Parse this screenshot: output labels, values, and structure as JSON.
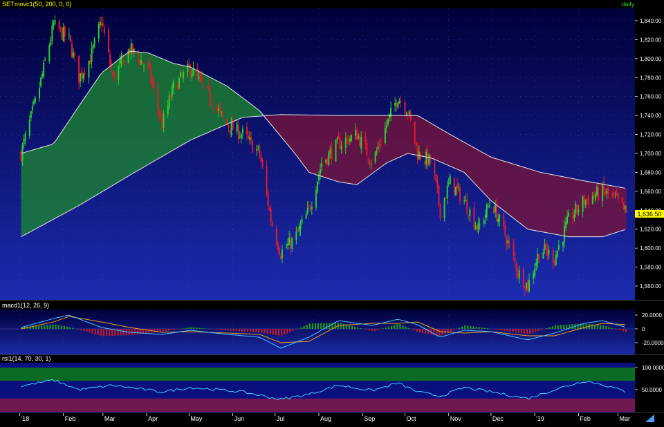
{
  "colors": {
    "bg_top": "#00003a",
    "bg_bottom": "#1c2bb0",
    "up": "#2bd12b",
    "down": "#e8182a",
    "fast_ma_fill": "#1e8a2e",
    "slow_ma_fill": "#7a1438",
    "ma_line": "#e6e6e6",
    "macd_line": "#4fc3ff",
    "signal_line": "#f0a020",
    "hist_pos": "#1e9a1e",
    "hist_neg": "#c0182a",
    "rsi_line": "#44ccff",
    "rsi_over": "#0b6b24",
    "rsi_under": "#701850",
    "label_text": "#ffff00",
    "scale_text": "#ffffff",
    "last_price_bg": "#ffff00"
  },
  "main_panel": {
    "symbol": "SET",
    "indicator": "movc1(50, 200, 0, 0)",
    "timeframe": "daily",
    "price_ticks": [
      "1,840.00",
      "1,820.00",
      "1,800.00",
      "1,780.00",
      "1,760.00",
      "1,740.00",
      "1,720.00",
      "1,700.00",
      "1,680.00",
      "1,660.00",
      "1,640.00",
      "1,620.00",
      "1,600.00",
      "1,580.00",
      "1,560.00"
    ],
    "last_price": "1,636.50"
  },
  "macd_panel": {
    "label": "macd1(12, 26, 9)",
    "ticks": [
      "20.0000",
      "0",
      "-20.0000"
    ]
  },
  "rsi_panel": {
    "label": "rsi1(14, 70, 30, 1)",
    "ticks": [
      "100.0000",
      "50.0000"
    ]
  },
  "time_axis": {
    "labels": [
      "'18",
      "Feb",
      "Mar",
      "Apr",
      "May",
      "Jun",
      "Jul",
      "Aug",
      "Sep",
      "Oct",
      "Nov",
      "Dec",
      "'19",
      "Feb",
      "Mar"
    ]
  },
  "chart_data": {
    "type": "candlestick",
    "title": "SET daily",
    "y_range": [
      1550,
      1855
    ],
    "price_path": [
      {
        "date": "2018-01-02",
        "close": 1700
      },
      {
        "date": "2018-01-15",
        "close": 1770
      },
      {
        "date": "2018-01-25",
        "close": 1835
      },
      {
        "date": "2018-02-05",
        "close": 1820
      },
      {
        "date": "2018-02-12",
        "close": 1780
      },
      {
        "date": "2018-02-20",
        "close": 1800
      },
      {
        "date": "2018-02-28",
        "close": 1840
      },
      {
        "date": "2018-03-08",
        "close": 1780
      },
      {
        "date": "2018-03-20",
        "close": 1810
      },
      {
        "date": "2018-04-02",
        "close": 1790
      },
      {
        "date": "2018-04-12",
        "close": 1730
      },
      {
        "date": "2018-04-20",
        "close": 1770
      },
      {
        "date": "2018-05-02",
        "close": 1790
      },
      {
        "date": "2018-05-15",
        "close": 1760
      },
      {
        "date": "2018-05-28",
        "close": 1730
      },
      {
        "date": "2018-06-08",
        "close": 1720
      },
      {
        "date": "2018-06-20",
        "close": 1700
      },
      {
        "date": "2018-06-28",
        "close": 1630
      },
      {
        "date": "2018-07-05",
        "close": 1595
      },
      {
        "date": "2018-07-15",
        "close": 1610
      },
      {
        "date": "2018-07-25",
        "close": 1640
      },
      {
        "date": "2018-08-03",
        "close": 1690
      },
      {
        "date": "2018-08-15",
        "close": 1710
      },
      {
        "date": "2018-08-28",
        "close": 1720
      },
      {
        "date": "2018-09-08",
        "close": 1690
      },
      {
        "date": "2018-09-18",
        "close": 1730
      },
      {
        "date": "2018-09-26",
        "close": 1760
      },
      {
        "date": "2018-10-03",
        "close": 1745
      },
      {
        "date": "2018-10-10",
        "close": 1700
      },
      {
        "date": "2018-10-20",
        "close": 1690
      },
      {
        "date": "2018-10-26",
        "close": 1640
      },
      {
        "date": "2018-11-02",
        "close": 1670
      },
      {
        "date": "2018-11-12",
        "close": 1650
      },
      {
        "date": "2018-11-22",
        "close": 1620
      },
      {
        "date": "2018-12-01",
        "close": 1650
      },
      {
        "date": "2018-12-12",
        "close": 1610
      },
      {
        "date": "2018-12-20",
        "close": 1575
      },
      {
        "date": "2018-12-27",
        "close": 1560
      },
      {
        "date": "2019-01-05",
        "close": 1600
      },
      {
        "date": "2019-01-15",
        "close": 1590
      },
      {
        "date": "2019-01-25",
        "close": 1630
      },
      {
        "date": "2019-02-05",
        "close": 1650
      },
      {
        "date": "2019-02-18",
        "close": 1660
      },
      {
        "date": "2019-02-28",
        "close": 1650
      },
      {
        "date": "2019-03-07",
        "close": 1636.5
      }
    ],
    "ma_fast_path": [
      {
        "date": "2018-01-02",
        "value": 1700
      },
      {
        "date": "2018-01-25",
        "value": 1710
      },
      {
        "date": "2018-02-12",
        "value": 1750
      },
      {
        "date": "2018-02-28",
        "value": 1785
      },
      {
        "date": "2018-03-20",
        "value": 1808
      },
      {
        "date": "2018-04-02",
        "value": 1806
      },
      {
        "date": "2018-04-20",
        "value": 1795
      },
      {
        "date": "2018-05-02",
        "value": 1791
      },
      {
        "date": "2018-05-28",
        "value": 1771
      },
      {
        "date": "2018-06-20",
        "value": 1745
      },
      {
        "date": "2018-07-15",
        "value": 1700
      },
      {
        "date": "2018-07-25",
        "value": 1680
      },
      {
        "date": "2018-08-15",
        "value": 1670
      },
      {
        "date": "2018-08-28",
        "value": 1667
      },
      {
        "date": "2018-09-18",
        "value": 1690
      },
      {
        "date": "2018-10-03",
        "value": 1700
      },
      {
        "date": "2018-10-20",
        "value": 1695
      },
      {
        "date": "2018-11-12",
        "value": 1680
      },
      {
        "date": "2018-12-01",
        "value": 1650
      },
      {
        "date": "2018-12-27",
        "value": 1620
      },
      {
        "date": "2019-01-25",
        "value": 1612
      },
      {
        "date": "2019-02-18",
        "value": 1612
      },
      {
        "date": "2019-03-07",
        "value": 1620
      }
    ],
    "ma_slow_path": [
      {
        "date": "2018-01-02",
        "value": 1612
      },
      {
        "date": "2018-02-12",
        "value": 1645
      },
      {
        "date": "2018-03-20",
        "value": 1677
      },
      {
        "date": "2018-05-02",
        "value": 1714
      },
      {
        "date": "2018-06-08",
        "value": 1738
      },
      {
        "date": "2018-07-05",
        "value": 1741
      },
      {
        "date": "2018-08-15",
        "value": 1740
      },
      {
        "date": "2018-09-18",
        "value": 1740
      },
      {
        "date": "2018-10-10",
        "value": 1740
      },
      {
        "date": "2018-11-02",
        "value": 1720
      },
      {
        "date": "2018-12-01",
        "value": 1696
      },
      {
        "date": "2019-01-05",
        "value": 1680
      },
      {
        "date": "2019-02-05",
        "value": 1671
      },
      {
        "date": "2019-03-07",
        "value": 1663
      }
    ],
    "macd_path": [
      {
        "date": "2018-01-02",
        "macd": 2,
        "signal": 0
      },
      {
        "date": "2018-01-25",
        "macd": 15,
        "signal": 10
      },
      {
        "date": "2018-02-05",
        "macd": 20,
        "signal": 18
      },
      {
        "date": "2018-02-28",
        "macd": 2,
        "signal": 10
      },
      {
        "date": "2018-03-20",
        "macd": -5,
        "signal": 2
      },
      {
        "date": "2018-04-12",
        "macd": -8,
        "signal": -5
      },
      {
        "date": "2018-05-02",
        "macd": -2,
        "signal": -4
      },
      {
        "date": "2018-05-28",
        "macd": -8,
        "signal": -6
      },
      {
        "date": "2018-06-20",
        "macd": -12,
        "signal": -8
      },
      {
        "date": "2018-07-05",
        "macd": -28,
        "signal": -20
      },
      {
        "date": "2018-07-25",
        "macd": -12,
        "signal": -18
      },
      {
        "date": "2018-08-15",
        "macd": 12,
        "signal": 5
      },
      {
        "date": "2018-09-08",
        "macd": 5,
        "signal": 8
      },
      {
        "date": "2018-09-26",
        "macd": 14,
        "signal": 8
      },
      {
        "date": "2018-10-10",
        "macd": 6,
        "signal": 10
      },
      {
        "date": "2018-10-26",
        "macd": -12,
        "signal": -4
      },
      {
        "date": "2018-11-12",
        "macd": -2,
        "signal": -6
      },
      {
        "date": "2018-12-01",
        "macd": -4,
        "signal": -4
      },
      {
        "date": "2018-12-27",
        "macd": -16,
        "signal": -10
      },
      {
        "date": "2019-01-15",
        "macd": -6,
        "signal": -10
      },
      {
        "date": "2019-02-05",
        "macd": 8,
        "signal": 2
      },
      {
        "date": "2019-02-18",
        "macd": 12,
        "signal": 8
      },
      {
        "date": "2019-03-07",
        "macd": 2,
        "signal": 6
      }
    ],
    "rsi_path": [
      {
        "date": "2018-01-02",
        "value": 58
      },
      {
        "date": "2018-01-25",
        "value": 72
      },
      {
        "date": "2018-02-12",
        "value": 50
      },
      {
        "date": "2018-03-08",
        "value": 60
      },
      {
        "date": "2018-04-12",
        "value": 45
      },
      {
        "date": "2018-05-02",
        "value": 55
      },
      {
        "date": "2018-06-08",
        "value": 45
      },
      {
        "date": "2018-07-05",
        "value": 28
      },
      {
        "date": "2018-07-25",
        "value": 40
      },
      {
        "date": "2018-08-15",
        "value": 60
      },
      {
        "date": "2018-09-08",
        "value": 48
      },
      {
        "date": "2018-09-26",
        "value": 65
      },
      {
        "date": "2018-10-10",
        "value": 45
      },
      {
        "date": "2018-10-26",
        "value": 35
      },
      {
        "date": "2018-11-12",
        "value": 55
      },
      {
        "date": "2018-12-01",
        "value": 45
      },
      {
        "date": "2018-12-27",
        "value": 30
      },
      {
        "date": "2019-01-15",
        "value": 50
      },
      {
        "date": "2019-02-05",
        "value": 70
      },
      {
        "date": "2019-02-18",
        "value": 62
      },
      {
        "date": "2019-03-07",
        "value": 45
      }
    ],
    "rsi_levels": [
      70,
      30
    ],
    "date_range": [
      "2017-12-20",
      "2019-03-12"
    ]
  }
}
